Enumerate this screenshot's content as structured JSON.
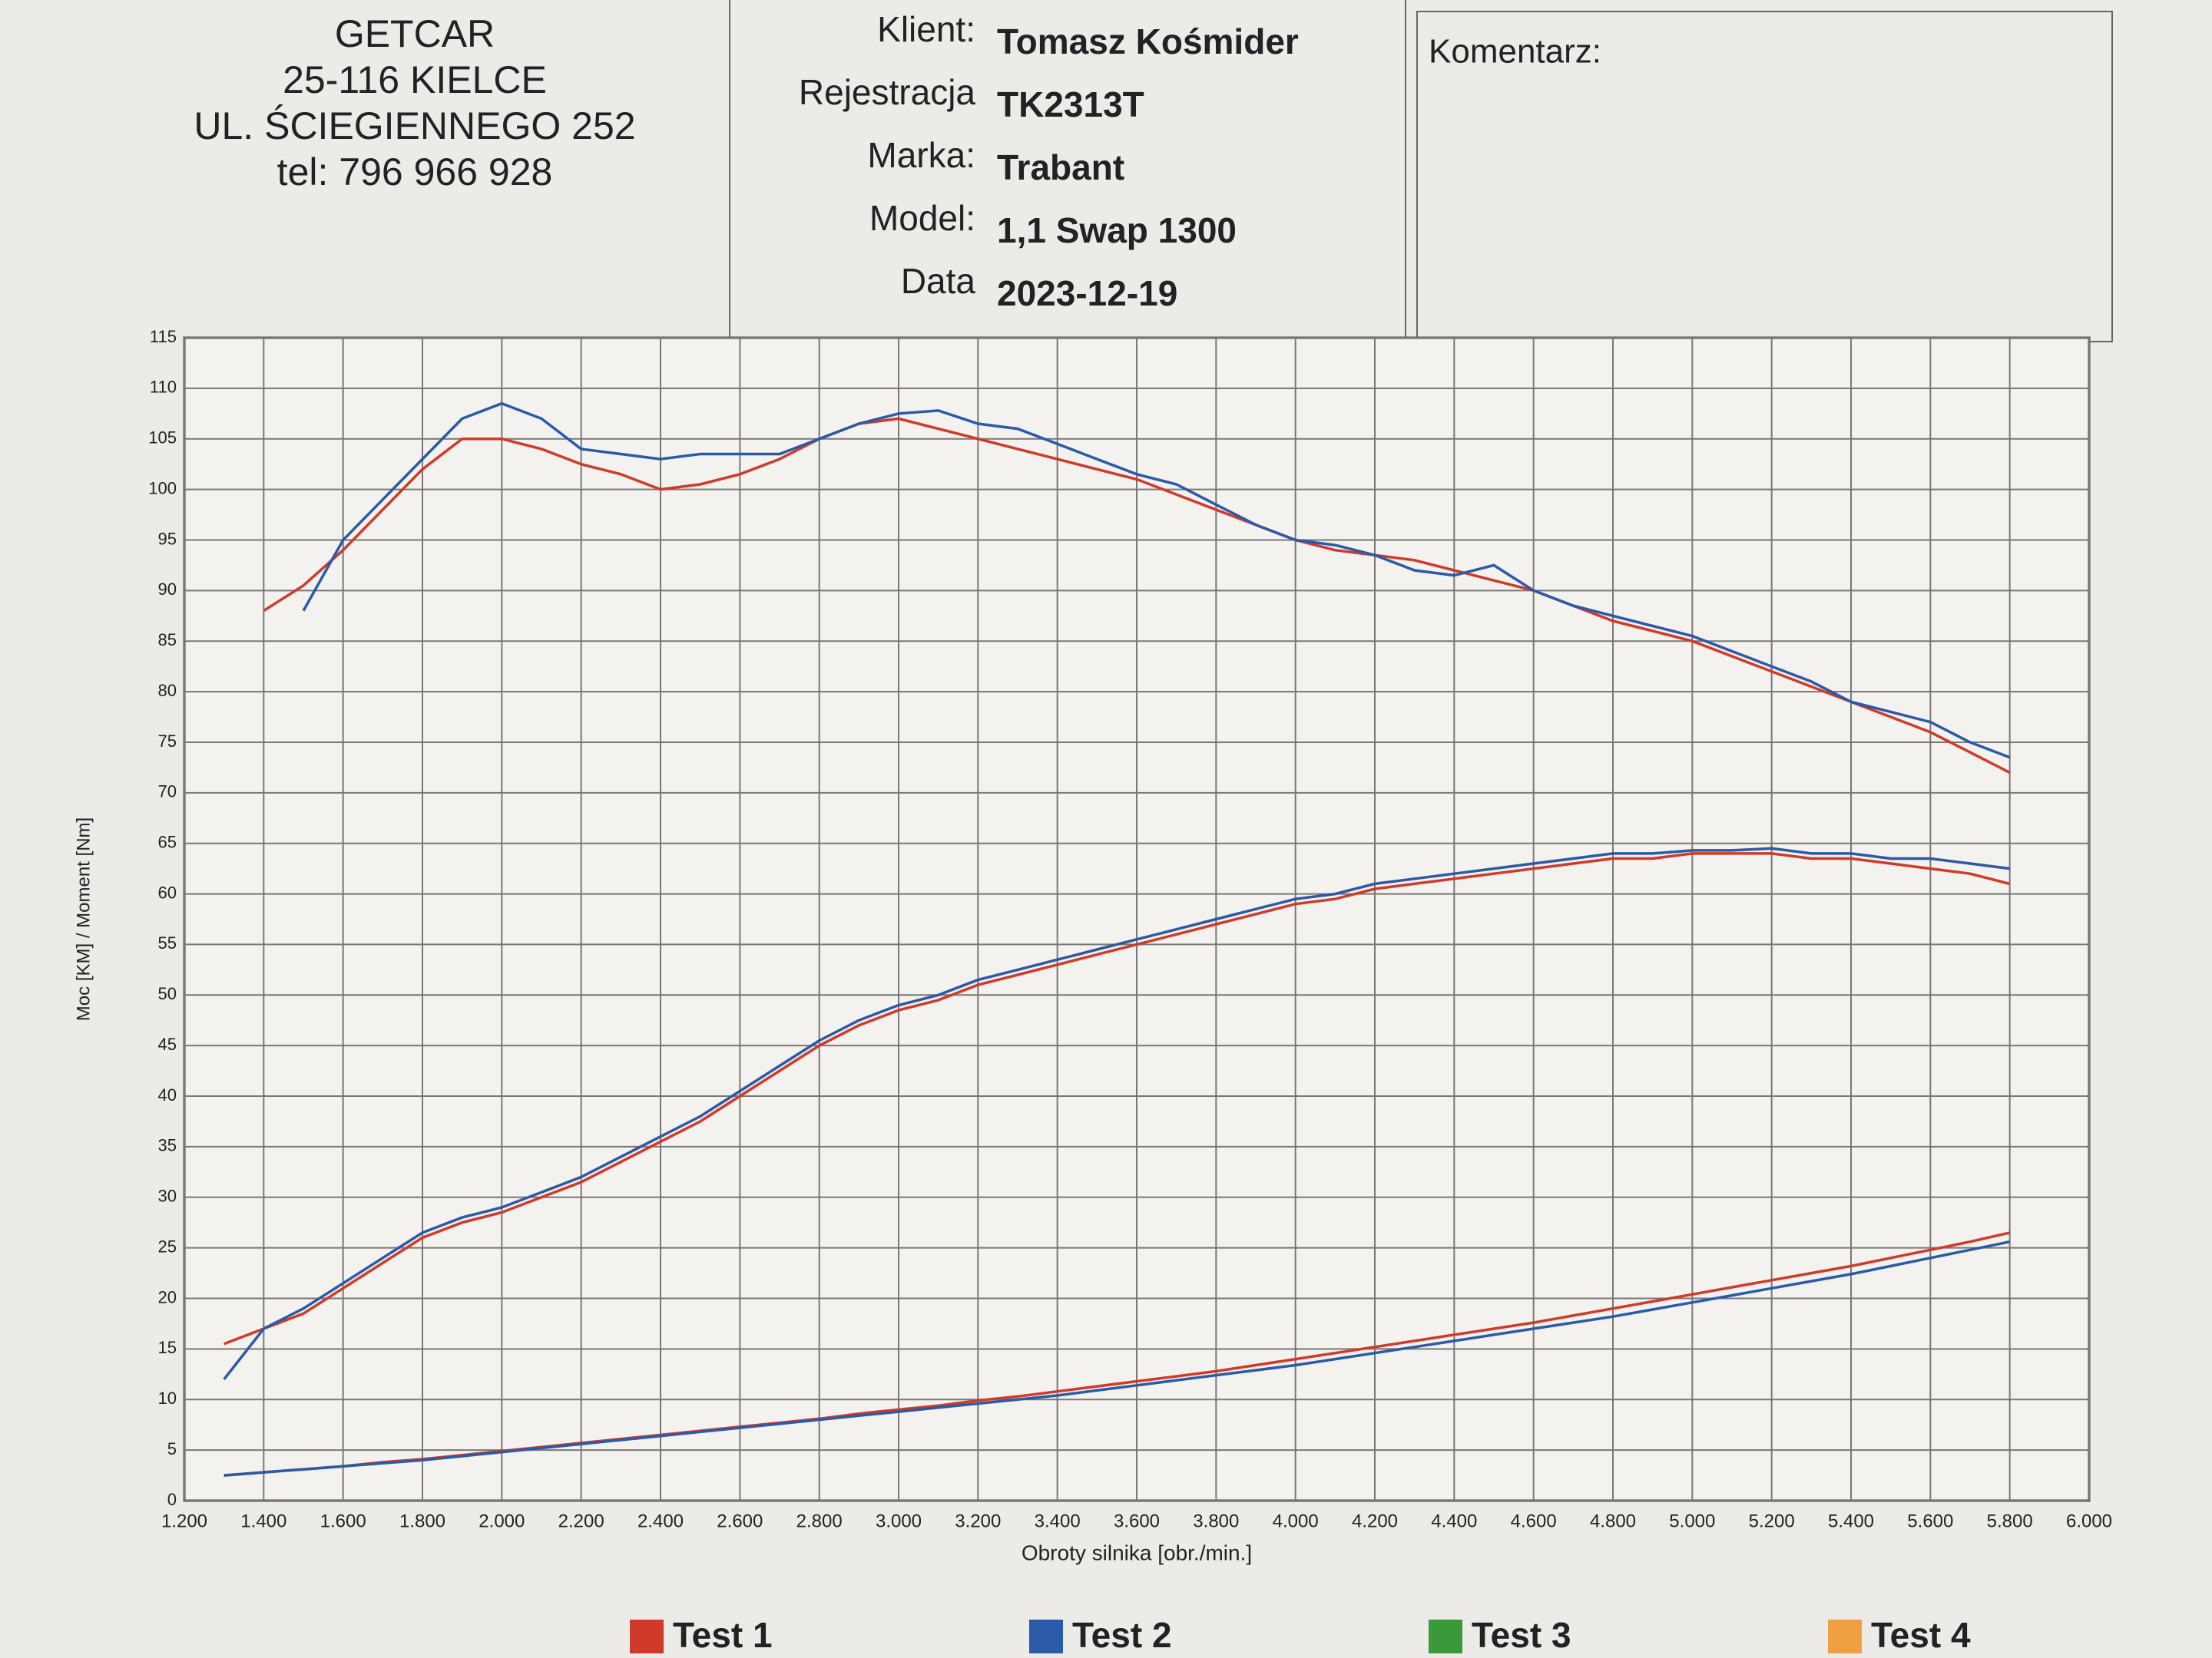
{
  "header": {
    "company": [
      "GETCAR",
      "25-116 KIELCE",
      "UL. ŚCIEGIENNEGO 252",
      "tel: 796 966 928"
    ],
    "client": [
      {
        "label": "Klient:",
        "value": "Tomasz Kośmider"
      },
      {
        "label": "Rejestracja",
        "value": "TK2313T"
      },
      {
        "label": "Marka:",
        "value": "Trabant"
      },
      {
        "label": "Model:",
        "value": "1,1 Swap 1300"
      },
      {
        "label": "Data",
        "value": "2023-12-19"
      }
    ],
    "comment_label": "Komentarz:"
  },
  "chart_data": {
    "type": "line",
    "x_label": "Obroty silnika [obr./min.]",
    "y_label": "Moc [KM] / Moment [Nm]",
    "x": [
      1300,
      1400,
      1500,
      1600,
      1700,
      1800,
      1900,
      2000,
      2100,
      2200,
      2300,
      2400,
      2500,
      2600,
      2700,
      2800,
      2900,
      3000,
      3100,
      3200,
      3300,
      3400,
      3500,
      3600,
      3700,
      3800,
      3900,
      4000,
      4100,
      4200,
      4300,
      4400,
      4500,
      4600,
      4700,
      4800,
      4900,
      5000,
      5100,
      5200,
      5300,
      5400,
      5500,
      5600,
      5700,
      5800
    ],
    "xlim": [
      1200,
      6000
    ],
    "xticks": [
      {
        "value": 1200,
        "label": "1.200"
      },
      {
        "value": 1400,
        "label": "1.400"
      },
      {
        "value": 1600,
        "label": "1.600"
      },
      {
        "value": 1800,
        "label": "1.800"
      },
      {
        "value": 2000,
        "label": "2.000"
      },
      {
        "value": 2200,
        "label": "2.200"
      },
      {
        "value": 2400,
        "label": "2.400"
      },
      {
        "value": 2600,
        "label": "2.600"
      },
      {
        "value": 2800,
        "label": "2.800"
      },
      {
        "value": 3000,
        "label": "3.000"
      },
      {
        "value": 3200,
        "label": "3.200"
      },
      {
        "value": 3400,
        "label": "3.400"
      },
      {
        "value": 3600,
        "label": "3.600"
      },
      {
        "value": 3800,
        "label": "3.800"
      },
      {
        "value": 4000,
        "label": "4.000"
      },
      {
        "value": 4200,
        "label": "4.200"
      },
      {
        "value": 4400,
        "label": "4.400"
      },
      {
        "value": 4600,
        "label": "4.600"
      },
      {
        "value": 4800,
        "label": "4.800"
      },
      {
        "value": 5000,
        "label": "5.000"
      },
      {
        "value": 5200,
        "label": "5.200"
      },
      {
        "value": 5400,
        "label": "5.400"
      },
      {
        "value": 5600,
        "label": "5.600"
      },
      {
        "value": 5800,
        "label": "5.800"
      },
      {
        "value": 6000,
        "label": "6.000"
      }
    ],
    "ylim": [
      0,
      115
    ],
    "yticks": [
      0,
      5,
      10,
      15,
      20,
      25,
      30,
      35,
      40,
      45,
      50,
      55,
      60,
      65,
      70,
      75,
      80,
      85,
      90,
      95,
      100,
      105,
      110,
      115
    ],
    "grid": true,
    "series": [
      {
        "name": "Test 1",
        "color": "#d03a2a",
        "values": [
          null,
          88,
          90.5,
          94,
          98,
          102,
          105,
          105,
          104,
          102.5,
          101.5,
          100,
          100.5,
          101.5,
          103,
          105,
          106.5,
          107,
          106,
          105,
          104,
          103,
          102,
          101,
          99.5,
          98,
          96.5,
          95,
          94,
          93.5,
          93,
          92,
          91,
          90,
          88.5,
          87,
          86,
          85,
          83.5,
          82,
          80.5,
          79,
          77.5,
          76,
          74,
          72
        ]
      },
      {
        "name": "Test 2",
        "color": "#2a5aa8",
        "values": [
          null,
          null,
          88,
          95,
          99,
          103,
          107,
          108.5,
          107,
          104,
          103.5,
          103,
          103.5,
          103.5,
          103.5,
          105,
          106.5,
          107.5,
          107.8,
          106.5,
          106,
          104.5,
          103,
          101.5,
          100.5,
          98.5,
          96.5,
          95,
          94.5,
          93.5,
          92,
          91.5,
          92.5,
          90,
          88.5,
          87.5,
          86.5,
          85.5,
          84,
          82.5,
          81,
          79,
          78,
          77,
          75,
          73.5
        ]
      },
      {
        "name": "Test 1",
        "color": "#d03a2a",
        "values": [
          15.5,
          17,
          18.5,
          21,
          23.5,
          26,
          27.5,
          28.5,
          30,
          31.5,
          33.5,
          35.5,
          37.5,
          40,
          42.5,
          45,
          47,
          48.5,
          49.5,
          51,
          52,
          53,
          54,
          55,
          56,
          57,
          58,
          59,
          59.5,
          60.5,
          61,
          61.5,
          62,
          62.5,
          63,
          63.5,
          63.5,
          64,
          64,
          64,
          63.5,
          63.5,
          63,
          62.5,
          62,
          61
        ]
      },
      {
        "name": "Test 2",
        "color": "#2a5aa8",
        "values": [
          12,
          17,
          19,
          21.5,
          24,
          26.5,
          28,
          29,
          30.5,
          32,
          34,
          36,
          38,
          40.5,
          43,
          45.5,
          47.5,
          49,
          50,
          51.5,
          52.5,
          53.5,
          54.5,
          55.5,
          56.5,
          57.5,
          58.5,
          59.5,
          60,
          61,
          61.5,
          62,
          62.5,
          63,
          63.5,
          64,
          64,
          64.3,
          64.3,
          64.5,
          64,
          64,
          63.5,
          63.5,
          63,
          62.5
        ]
      },
      {
        "name": "Test 1",
        "color": "#d03a2a",
        "values": [
          2.5,
          2.8,
          3.1,
          3.4,
          3.8,
          4.1,
          4.5,
          4.9,
          5.3,
          5.7,
          6.1,
          6.5,
          6.9,
          7.3,
          7.7,
          8.1,
          8.6,
          9.0,
          9.4,
          9.9,
          10.3,
          10.8,
          11.3,
          11.8,
          12.3,
          12.8,
          13.4,
          14.0,
          14.6,
          15.2,
          15.8,
          16.4,
          17.0,
          17.6,
          18.3,
          19.0,
          19.7,
          20.4,
          21.1,
          21.8,
          22.5,
          23.2,
          24.0,
          24.8,
          25.6,
          26.5
        ]
      },
      {
        "name": "Test 2",
        "color": "#2a5aa8",
        "values": [
          2.5,
          2.8,
          3.1,
          3.4,
          3.7,
          4.0,
          4.4,
          4.8,
          5.2,
          5.6,
          6.0,
          6.4,
          6.8,
          7.2,
          7.6,
          8.0,
          8.4,
          8.8,
          9.2,
          9.6,
          10.0,
          10.4,
          10.9,
          11.4,
          11.9,
          12.4,
          12.9,
          13.4,
          14.0,
          14.6,
          15.2,
          15.8,
          16.4,
          17.0,
          17.6,
          18.2,
          18.9,
          19.6,
          20.3,
          21.0,
          21.7,
          22.4,
          23.2,
          24.0,
          24.8,
          25.6
        ]
      }
    ],
    "legend": [
      {
        "name": "Test 1",
        "color": "#d03a2a"
      },
      {
        "name": "Test 2",
        "color": "#2a5aa8"
      },
      {
        "name": "Test 3",
        "color": "#3a9a3a"
      },
      {
        "name": "Test 4",
        "color": "#f0a040"
      }
    ]
  }
}
